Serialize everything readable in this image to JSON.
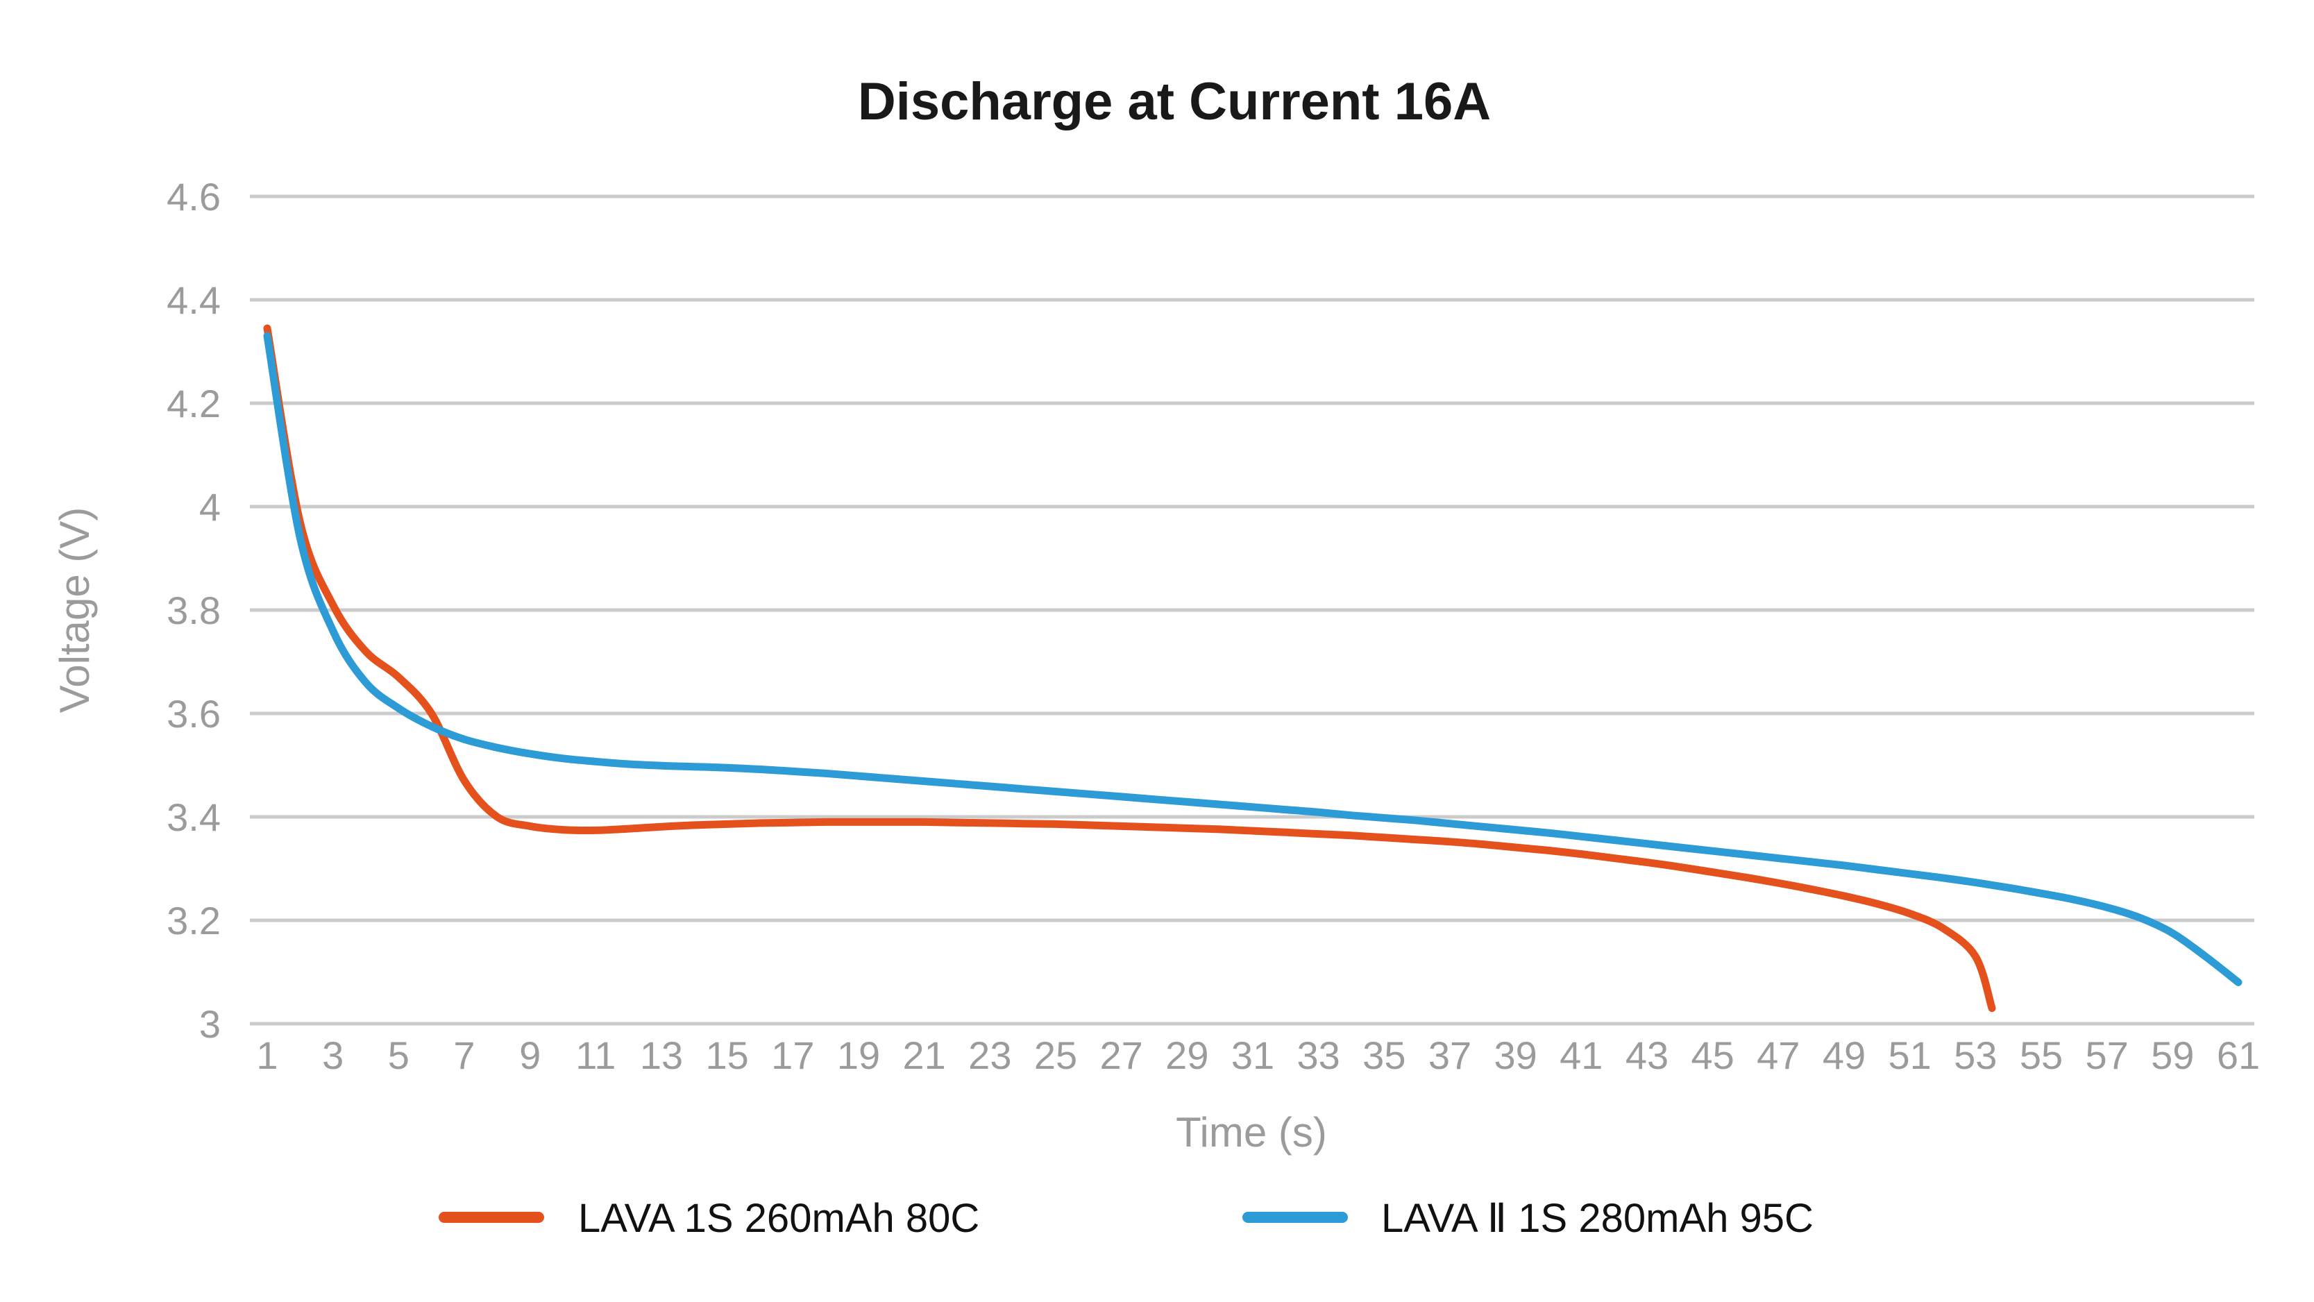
{
  "title": "Discharge at Current 16A",
  "axes": {
    "y": {
      "label": "Voltage (V)",
      "min": 3.0,
      "max": 4.6,
      "ticks": [
        4.6,
        4.4,
        4.2,
        4,
        3.8,
        3.6,
        3.4,
        3.2,
        3
      ]
    },
    "x": {
      "label": "Time (s)",
      "min": 1,
      "max": 61,
      "ticks": [
        1,
        3,
        5,
        7,
        9,
        11,
        13,
        15,
        17,
        19,
        21,
        23,
        25,
        27,
        29,
        31,
        33,
        35,
        37,
        39,
        41,
        43,
        45,
        47,
        49,
        51,
        53,
        55,
        57,
        59,
        61
      ]
    }
  },
  "legend": {
    "position": "bottom",
    "items": [
      {
        "label": "LAVA 1S 260mAh 80C",
        "color": "#e5511d"
      },
      {
        "label": "LAVA Ⅱ 1S 280mAh 95C",
        "color": "#2d9bd6"
      }
    ]
  },
  "colors": {
    "background": "#ffffff",
    "title_text": "#191919",
    "gridline": "#cbcbcb",
    "axis_text": "#9b9b9b",
    "legend_text": "#111111",
    "series_orange": "#e5511d",
    "series_blue": "#2d9bd6"
  },
  "chart_data": {
    "type": "line",
    "title": "Discharge at Current 16A",
    "xlabel": "Time (s)",
    "ylabel": "Voltage (V)",
    "xlim": [
      1,
      61
    ],
    "ylim": [
      3.0,
      4.6
    ],
    "x_ticks": [
      1,
      3,
      5,
      7,
      9,
      11,
      13,
      15,
      17,
      19,
      21,
      23,
      25,
      27,
      29,
      31,
      33,
      35,
      37,
      39,
      41,
      43,
      45,
      47,
      49,
      51,
      53,
      55,
      57,
      59,
      61
    ],
    "y_ticks": [
      4.6,
      4.4,
      4.2,
      4,
      3.8,
      3.6,
      3.4,
      3.2,
      3
    ],
    "grid": "horizontal-only",
    "legend_position": "bottom",
    "series": [
      {
        "name": "LAVA 1S 260mAh 80C",
        "color": "#e5511d",
        "points": [
          [
            1,
            4.345
          ],
          [
            2,
            3.97
          ],
          [
            3,
            3.81
          ],
          [
            4,
            3.72
          ],
          [
            5,
            3.67
          ],
          [
            6,
            3.6
          ],
          [
            7,
            3.47
          ],
          [
            8,
            3.4
          ],
          [
            9,
            3.382
          ],
          [
            10,
            3.375
          ],
          [
            11,
            3.374
          ],
          [
            12,
            3.377
          ],
          [
            13,
            3.381
          ],
          [
            14,
            3.384
          ],
          [
            15,
            3.386
          ],
          [
            16,
            3.388
          ],
          [
            17,
            3.389
          ],
          [
            18,
            3.39
          ],
          [
            19,
            3.39
          ],
          [
            20,
            3.39
          ],
          [
            21,
            3.39
          ],
          [
            22,
            3.389
          ],
          [
            23,
            3.388
          ],
          [
            24,
            3.387
          ],
          [
            25,
            3.386
          ],
          [
            26,
            3.384
          ],
          [
            27,
            3.382
          ],
          [
            28,
            3.38
          ],
          [
            29,
            3.378
          ],
          [
            30,
            3.376
          ],
          [
            31,
            3.373
          ],
          [
            32,
            3.37
          ],
          [
            33,
            3.367
          ],
          [
            34,
            3.364
          ],
          [
            35,
            3.36
          ],
          [
            36,
            3.356
          ],
          [
            37,
            3.352
          ],
          [
            38,
            3.347
          ],
          [
            39,
            3.341
          ],
          [
            40,
            3.335
          ],
          [
            41,
            3.328
          ],
          [
            42,
            3.32
          ],
          [
            43,
            3.312
          ],
          [
            44,
            3.303
          ],
          [
            45,
            3.293
          ],
          [
            46,
            3.283
          ],
          [
            47,
            3.272
          ],
          [
            48,
            3.26
          ],
          [
            49,
            3.247
          ],
          [
            50,
            3.232
          ],
          [
            51,
            3.213
          ],
          [
            52,
            3.185
          ],
          [
            53,
            3.13
          ],
          [
            53.5,
            3.03
          ]
        ]
      },
      {
        "name": "LAVA Ⅱ 1S 280mAh 95C",
        "color": "#2d9bd6",
        "points": [
          [
            1,
            4.33
          ],
          [
            2,
            3.94
          ],
          [
            3,
            3.76
          ],
          [
            4,
            3.66
          ],
          [
            5,
            3.61
          ],
          [
            6,
            3.575
          ],
          [
            7,
            3.55
          ],
          [
            8,
            3.534
          ],
          [
            9,
            3.522
          ],
          [
            10,
            3.513
          ],
          [
            11,
            3.507
          ],
          [
            12,
            3.502
          ],
          [
            13,
            3.499
          ],
          [
            14,
            3.497
          ],
          [
            15,
            3.495
          ],
          [
            16,
            3.492
          ],
          [
            17,
            3.488
          ],
          [
            18,
            3.484
          ],
          [
            19,
            3.479
          ],
          [
            20,
            3.474
          ],
          [
            21,
            3.469
          ],
          [
            22,
            3.464
          ],
          [
            23,
            3.459
          ],
          [
            24,
            3.454
          ],
          [
            25,
            3.449
          ],
          [
            26,
            3.444
          ],
          [
            27,
            3.439
          ],
          [
            28,
            3.434
          ],
          [
            29,
            3.429
          ],
          [
            30,
            3.424
          ],
          [
            31,
            3.419
          ],
          [
            32,
            3.414
          ],
          [
            33,
            3.409
          ],
          [
            34,
            3.403
          ],
          [
            35,
            3.398
          ],
          [
            36,
            3.393
          ],
          [
            37,
            3.387
          ],
          [
            38,
            3.381
          ],
          [
            39,
            3.375
          ],
          [
            40,
            3.369
          ],
          [
            41,
            3.362
          ],
          [
            42,
            3.355
          ],
          [
            43,
            3.348
          ],
          [
            44,
            3.341
          ],
          [
            45,
            3.334
          ],
          [
            46,
            3.327
          ],
          [
            47,
            3.32
          ],
          [
            48,
            3.313
          ],
          [
            49,
            3.306
          ],
          [
            50,
            3.298
          ],
          [
            51,
            3.29
          ],
          [
            52,
            3.282
          ],
          [
            53,
            3.273
          ],
          [
            54,
            3.263
          ],
          [
            55,
            3.252
          ],
          [
            56,
            3.24
          ],
          [
            57,
            3.225
          ],
          [
            58,
            3.205
          ],
          [
            59,
            3.175
          ],
          [
            60,
            3.13
          ],
          [
            61,
            3.08
          ]
        ]
      }
    ]
  }
}
